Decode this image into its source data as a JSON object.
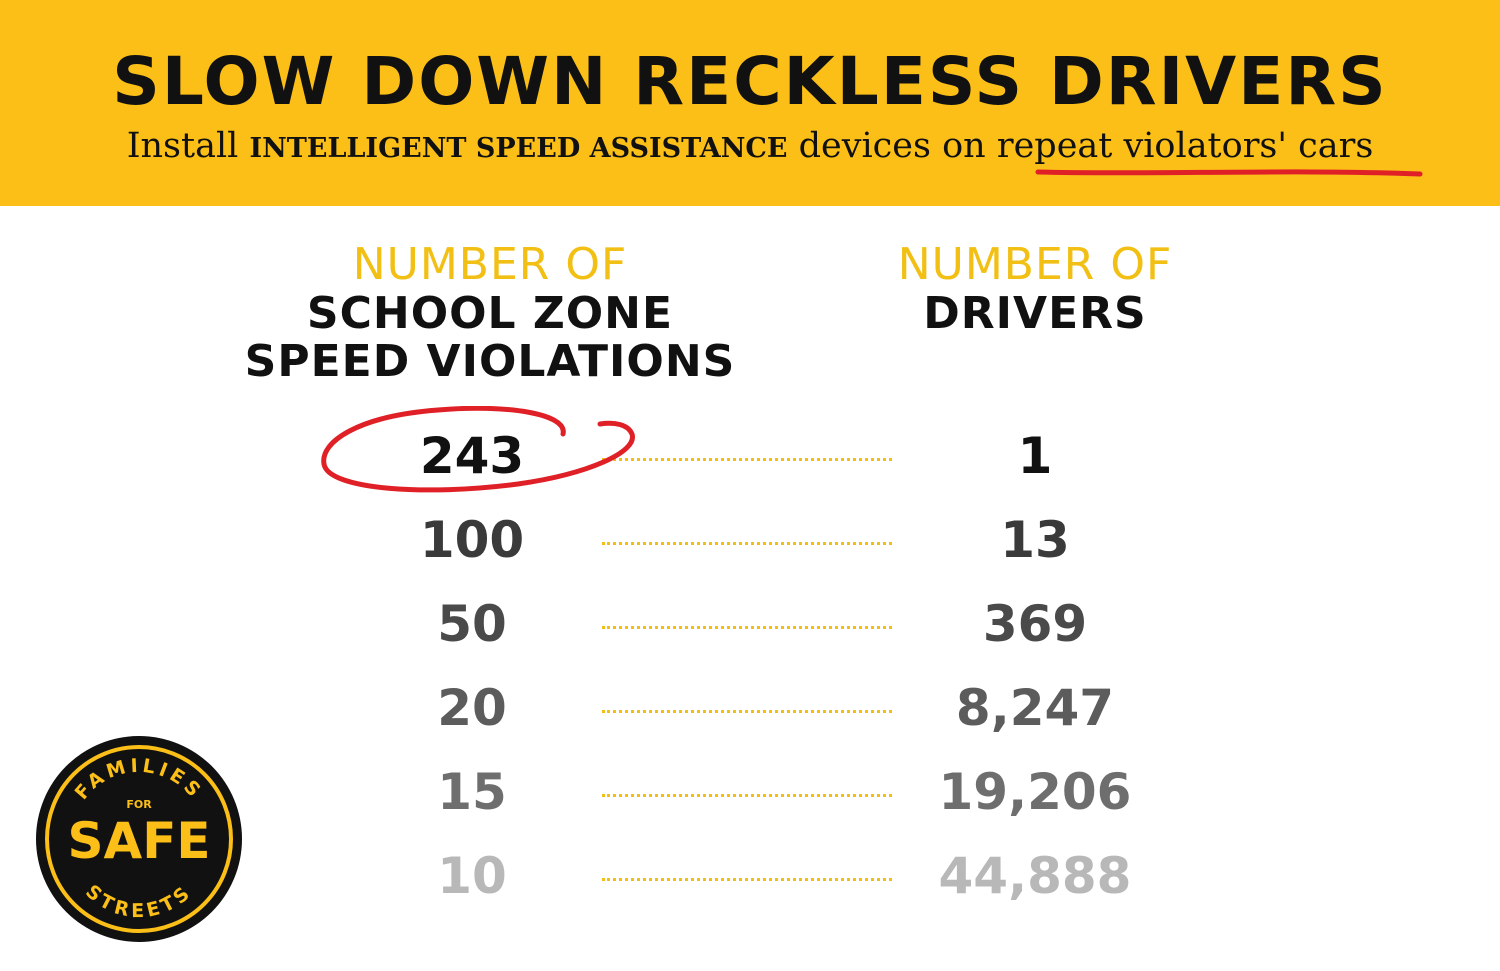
{
  "banner": {
    "title": "SLOW DOWN RECKLESS DRIVERS",
    "sub_pre": "Install",
    "sub_caps": "INTELLIGENT SPEED ASSISTANCE",
    "sub_mid": "devices on",
    "sub_highlight": "repeat violators' cars",
    "background_color": "#fbbf18"
  },
  "chart_data": {
    "type": "table",
    "columns": [
      {
        "pre": "NUMBER OF",
        "main_line1": "SCHOOL ZONE",
        "main_line2": "SPEED VIOLATIONS"
      },
      {
        "pre": "NUMBER OF",
        "main_line1": "DRIVERS"
      }
    ],
    "rows": [
      {
        "violations": "243",
        "drivers": "1",
        "color": "#111111",
        "circled": true
      },
      {
        "violations": "100",
        "drivers": "13",
        "color": "#3a3a3a",
        "circled": false
      },
      {
        "violations": "50",
        "drivers": "369",
        "color": "#4a4a4a",
        "circled": false
      },
      {
        "violations": "20",
        "drivers": "8,247",
        "color": "#5c5c5c",
        "circled": false
      },
      {
        "violations": "15",
        "drivers": "19,206",
        "color": "#6e6e6e",
        "circled": false
      },
      {
        "violations": "10",
        "drivers": "44,888",
        "color": "#b8b8b8",
        "circled": false
      }
    ],
    "accent_color": "#f2c014",
    "annotation_color": "#e02027"
  },
  "logo": {
    "top_text": "FAMILIES",
    "for_text": "FOR",
    "main_text": "SAFE",
    "bottom_text": "STREETS"
  }
}
